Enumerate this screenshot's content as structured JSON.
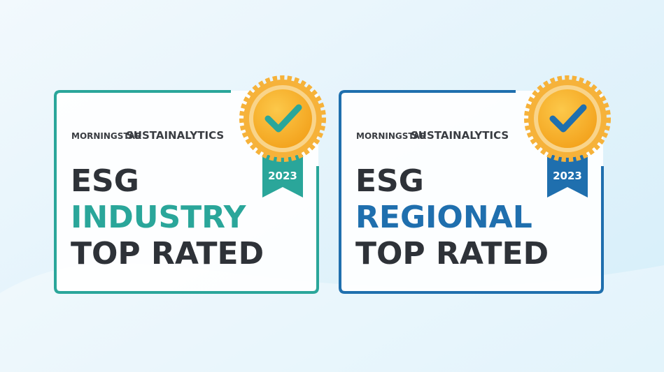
{
  "badges": [
    {
      "logo_primary": "MORNINGSTAR",
      "logo_secondary": "SUSTAINALYTICS",
      "line1": "ESG",
      "line2": "INDUSTRY",
      "line3": "TOP RATED",
      "year": "2023"
    },
    {
      "logo_primary": "MORNINGSTAR",
      "logo_secondary": "SUSTAINALYTICS",
      "line1": "ESG",
      "line2": "REGIONAL",
      "line3": "TOP RATED",
      "year": "2023"
    }
  ]
}
